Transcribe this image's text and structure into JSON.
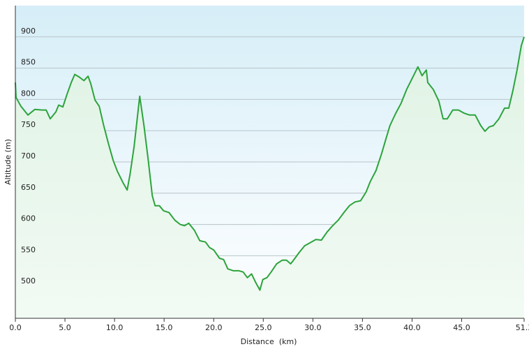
{
  "chart_data": {
    "type": "line",
    "x_label": "Distance  (km)",
    "y_label": "Altitude (m)",
    "x": [
      0.0,
      0.07,
      0.56,
      1.27,
      1.97,
      2.68,
      3.1,
      3.52,
      4.09,
      4.37,
      4.79,
      5.21,
      5.64,
      5.99,
      6.41,
      6.91,
      7.33,
      7.61,
      8.03,
      8.46,
      8.88,
      9.37,
      9.87,
      10.29,
      10.85,
      11.27,
      11.56,
      11.98,
      12.54,
      12.97,
      13.39,
      13.81,
      14.09,
      14.52,
      14.94,
      15.5,
      16.07,
      16.63,
      17.05,
      17.48,
      18.04,
      18.6,
      19.17,
      19.59,
      20.01,
      20.58,
      21.0,
      21.42,
      21.99,
      22.55,
      22.97,
      23.4,
      23.82,
      24.24,
      24.66,
      24.95,
      25.37,
      25.79,
      26.35,
      26.92,
      27.34,
      27.76,
      28.19,
      28.61,
      29.17,
      29.74,
      30.3,
      30.86,
      31.43,
      31.99,
      32.56,
      33.12,
      33.68,
      34.25,
      34.81,
      35.37,
      35.8,
      36.36,
      36.92,
      37.35,
      37.77,
      38.33,
      38.9,
      39.46,
      40.03,
      40.59,
      41.01,
      41.44,
      41.58,
      42.14,
      42.71,
      43.13,
      43.55,
      44.11,
      44.68,
      45.24,
      45.8,
      46.37,
      46.93,
      47.35,
      47.78,
      48.2,
      48.76,
      49.33,
      49.75,
      50.17,
      50.59,
      51.02,
      51.3
    ],
    "values": [
      827,
      803,
      789,
      775,
      784,
      783,
      783,
      769,
      780,
      791,
      788,
      808,
      827,
      840,
      836,
      830,
      837,
      825,
      799,
      789,
      760,
      730,
      702,
      685,
      667,
      655,
      680,
      725,
      805,
      758,
      704,
      646,
      630,
      630,
      622,
      619,
      607,
      600,
      598,
      602,
      591,
      574,
      572,
      563,
      559,
      546,
      544,
      529,
      526,
      526,
      524,
      515,
      521,
      507,
      495,
      512,
      515,
      524,
      537,
      543,
      543,
      537,
      546,
      555,
      566,
      571,
      576,
      575,
      588,
      598,
      607,
      619,
      630,
      636,
      638,
      652,
      669,
      686,
      713,
      736,
      758,
      777,
      794,
      816,
      834,
      852,
      838,
      847,
      827,
      816,
      797,
      769,
      769,
      783,
      783,
      778,
      775,
      775,
      758,
      749,
      756,
      758,
      769,
      786,
      786,
      814,
      847,
      886,
      900
    ],
    "color": "#2ca33c",
    "xlim": [
      0,
      51.3
    ],
    "ylim": [
      450,
      950
    ],
    "xticks": [
      {
        "value": 0,
        "label": "0.0"
      },
      {
        "value": 5,
        "label": "5.0"
      },
      {
        "value": 10,
        "label": "10.0"
      },
      {
        "value": 15,
        "label": "15.0"
      },
      {
        "value": 20,
        "label": "20.0"
      },
      {
        "value": 25,
        "label": "25.0"
      },
      {
        "value": 30,
        "label": "30.0"
      },
      {
        "value": 35,
        "label": "35.0"
      },
      {
        "value": 40,
        "label": "40.0"
      },
      {
        "value": 45,
        "label": "45.0"
      },
      51.3
    ],
    "yticks": [
      500,
      550,
      600,
      650,
      700,
      750,
      800,
      850,
      900
    ],
    "grid": true
  }
}
